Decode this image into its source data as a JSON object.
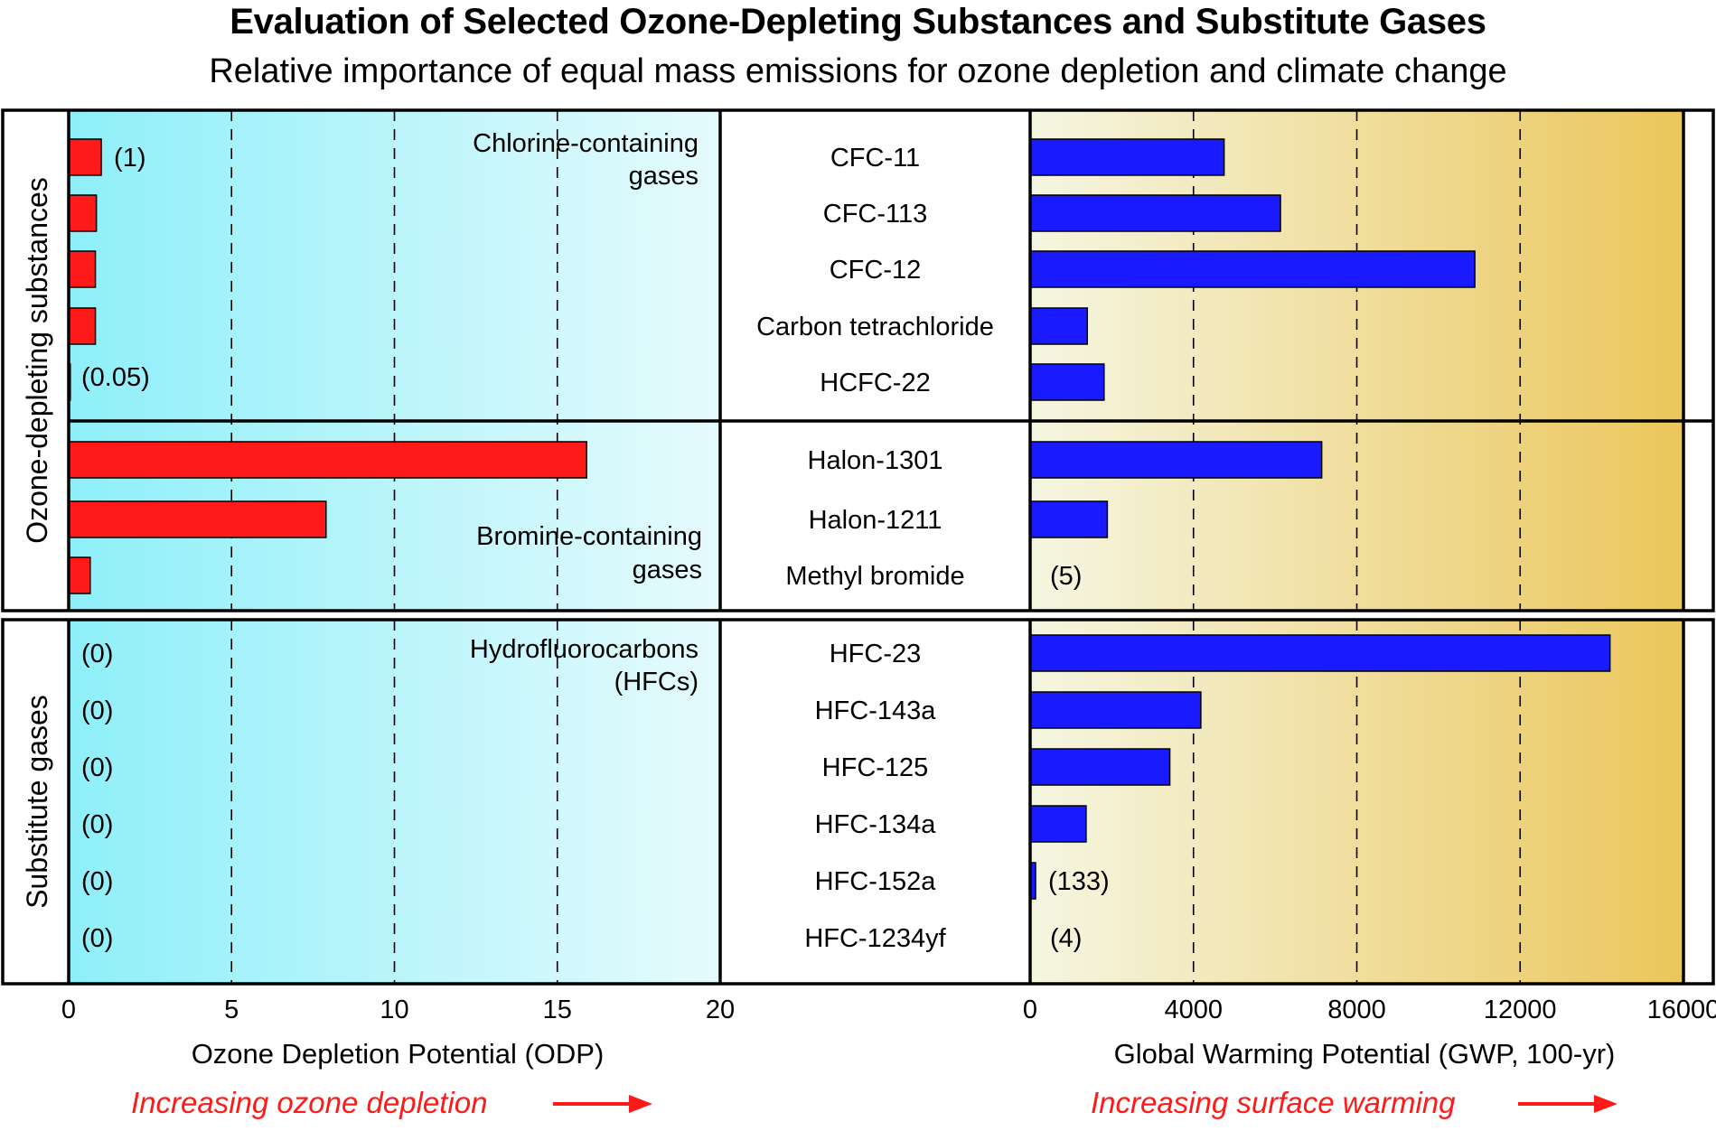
{
  "title": "Evaluation of Selected Ozone-Depleting Substances and Substitute Gases",
  "subtitle": "Relative importance of equal mass emissions for ozone depletion and climate change",
  "colors": {
    "odp_bar": "#ff1a1a",
    "gwp_bar": "#1a1aff",
    "odp_bg_left": "#8eeff9",
    "odp_bg_right": "#e6fbfd",
    "gwp_bg_left": "#f5f6e2",
    "gwp_bg_right": "#ebc65a",
    "arrow": "#ff1a1a"
  },
  "group_labels": {
    "ods": "Ozone-depleting substances",
    "substitutes": "Substitute gases"
  },
  "category_labels": {
    "chlorine": [
      "Chlorine-containing",
      "gases"
    ],
    "bromine": [
      "Bromine-containing",
      "gases"
    ],
    "hfc": [
      "Hydrofluorocarbons",
      "(HFCs)"
    ]
  },
  "axis_bottom": {
    "odp_title": "Ozone Depletion Potential (ODP)",
    "gwp_title": "Global Warming Potential (GWP, 100-yr)",
    "odp_arrow_text": "Increasing ozone depletion",
    "gwp_arrow_text": "Increasing surface warming"
  },
  "chart_data": [
    {
      "type": "bar",
      "orientation": "horizontal",
      "title": "",
      "xlabel": "Ozone Depletion Potential (ODP)",
      "xlim": [
        0,
        20
      ],
      "xticks": [
        0,
        5,
        10,
        15,
        20
      ],
      "grid": "vertical dashed at 5, 10, 15",
      "categories": [
        "CFC-11",
        "CFC-113",
        "CFC-12",
        "Carbon tetrachloride",
        "HCFC-22",
        "Halon-1301",
        "Halon-1211",
        "Methyl bromide",
        "HFC-23",
        "HFC-143a",
        "HFC-125",
        "HFC-134a",
        "HFC-152a",
        "HFC-1234yf"
      ],
      "values": [
        1,
        0.85,
        0.82,
        0.82,
        0.05,
        15.9,
        7.9,
        0.66,
        0,
        0,
        0,
        0,
        0,
        0
      ],
      "value_labels": [
        "(1)",
        "",
        "",
        "",
        "(0.05)",
        "",
        "",
        "",
        "(0)",
        "(0)",
        "(0)",
        "(0)",
        "(0)",
        "(0)"
      ]
    },
    {
      "type": "bar",
      "orientation": "horizontal",
      "title": "",
      "xlabel": "Global Warming Potential (GWP, 100-yr)",
      "xlim": [
        0,
        16000
      ],
      "xticks": [
        0,
        4000,
        8000,
        12000,
        16000
      ],
      "grid": "vertical dashed at 4000, 8000, 12000",
      "categories": [
        "CFC-11",
        "CFC-113",
        "CFC-12",
        "Carbon tetrachloride",
        "HCFC-22",
        "Halon-1301",
        "Halon-1211",
        "Methyl bromide",
        "HFC-23",
        "HFC-143a",
        "HFC-125",
        "HFC-134a",
        "HFC-152a",
        "HFC-1234yf"
      ],
      "values": [
        4750,
        6130,
        10890,
        1400,
        1810,
        7140,
        1890,
        5,
        14200,
        4180,
        3420,
        1370,
        133,
        4
      ],
      "value_labels": [
        "",
        "",
        "",
        "",
        "",
        "",
        "",
        "(5)",
        "",
        "",
        "",
        "",
        "(133)",
        "(4)"
      ]
    }
  ]
}
